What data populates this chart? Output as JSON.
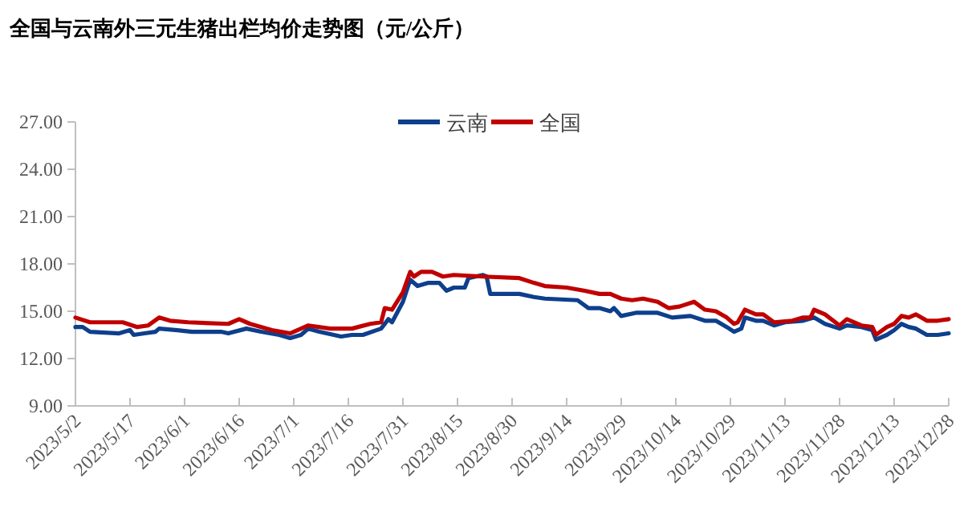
{
  "chart_data": {
    "type": "line",
    "title": "全国与云南外三元生猪出栏均价走势图（元/公斤）",
    "legend": "top",
    "xlim": [
      "2023-05-02",
      "2023-12-28"
    ],
    "xticks": [
      {
        "value": "2023-05-02",
        "label": "2023/5/2"
      },
      {
        "value": "2023-05-17",
        "label": "2023/5/17"
      },
      {
        "value": "2023-06-01",
        "label": "2023/6/1"
      },
      {
        "value": "2023-06-16",
        "label": "2023/6/16"
      },
      {
        "value": "2023-07-01",
        "label": "2023/7/1"
      },
      {
        "value": "2023-07-16",
        "label": "2023/7/16"
      },
      {
        "value": "2023-07-31",
        "label": "2023/7/31"
      },
      {
        "value": "2023-08-15",
        "label": "2023/8/15"
      },
      {
        "value": "2023-08-30",
        "label": "2023/8/30"
      },
      {
        "value": "2023-09-14",
        "label": "2023/9/14"
      },
      {
        "value": "2023-09-29",
        "label": "2023/9/29"
      },
      {
        "value": "2023-10-14",
        "label": "2023/10/14"
      },
      {
        "value": "2023-10-29",
        "label": "2023/10/29"
      },
      {
        "value": "2023-11-13",
        "label": "2023/11/13"
      },
      {
        "value": "2023-11-28",
        "label": "2023/11/28"
      },
      {
        "value": "2023-12-13",
        "label": "2023/12/13"
      },
      {
        "value": "2023-12-28",
        "label": "2023/12/28"
      }
    ],
    "ylim": [
      9,
      27
    ],
    "yticks": [
      {
        "value": 9,
        "label": "9.00"
      },
      {
        "value": 12,
        "label": "12.00"
      },
      {
        "value": 15,
        "label": "15.00"
      },
      {
        "value": 18,
        "label": "18.00"
      },
      {
        "value": 21,
        "label": "21.00"
      },
      {
        "value": 24,
        "label": "24.00"
      },
      {
        "value": 27,
        "label": "27.00"
      }
    ],
    "series": [
      {
        "name": "云南",
        "color": "#0d3f8c",
        "x": [
          "2023-05-02",
          "2023-05-04",
          "2023-05-06",
          "2023-05-14",
          "2023-05-17",
          "2023-05-18",
          "2023-05-21",
          "2023-05-24",
          "2023-05-25",
          "2023-05-30",
          "2023-06-03",
          "2023-06-11",
          "2023-06-13",
          "2023-06-18",
          "2023-06-22",
          "2023-06-27",
          "2023-06-30",
          "2023-07-03",
          "2023-07-05",
          "2023-07-08",
          "2023-07-14",
          "2023-07-17",
          "2023-07-20",
          "2023-07-25",
          "2023-07-27",
          "2023-07-28",
          "2023-07-31",
          "2023-08-02",
          "2023-08-04",
          "2023-08-07",
          "2023-08-10",
          "2023-08-12",
          "2023-08-14",
          "2023-08-17",
          "2023-08-18",
          "2023-08-20",
          "2023-08-22",
          "2023-08-23",
          "2023-08-24",
          "2023-09-01",
          "2023-09-05",
          "2023-09-08",
          "2023-09-17",
          "2023-09-20",
          "2023-09-23",
          "2023-09-26",
          "2023-09-27",
          "2023-09-29",
          "2023-10-03",
          "2023-10-09",
          "2023-10-13",
          "2023-10-18",
          "2023-10-22",
          "2023-10-25",
          "2023-10-28",
          "2023-10-30",
          "2023-11-01",
          "2023-11-02",
          "2023-11-05",
          "2023-11-07",
          "2023-11-10",
          "2023-11-13",
          "2023-11-18",
          "2023-11-21",
          "2023-11-24",
          "2023-11-28",
          "2023-11-30",
          "2023-12-04",
          "2023-12-07",
          "2023-12-08",
          "2023-12-11",
          "2023-12-13",
          "2023-12-15",
          "2023-12-17",
          "2023-12-19",
          "2023-12-22",
          "2023-12-25",
          "2023-12-28"
        ],
        "values": [
          14.0,
          14.0,
          13.7,
          13.6,
          13.8,
          13.5,
          13.6,
          13.7,
          13.9,
          13.8,
          13.7,
          13.7,
          13.6,
          13.9,
          13.7,
          13.5,
          13.3,
          13.5,
          13.9,
          13.7,
          13.4,
          13.5,
          13.5,
          13.9,
          14.5,
          14.3,
          15.6,
          17.0,
          16.6,
          16.8,
          16.8,
          16.3,
          16.5,
          16.5,
          17.1,
          17.2,
          17.3,
          17.2,
          16.1,
          16.1,
          15.9,
          15.8,
          15.7,
          15.2,
          15.2,
          15.0,
          15.2,
          14.7,
          14.9,
          14.9,
          14.6,
          14.7,
          14.4,
          14.4,
          14.0,
          13.7,
          13.9,
          14.6,
          14.4,
          14.4,
          14.1,
          14.3,
          14.4,
          14.6,
          14.2,
          13.9,
          14.1,
          14.0,
          13.8,
          13.2,
          13.5,
          13.8,
          14.2,
          14.0,
          13.9,
          13.5,
          13.5,
          13.6
        ]
      },
      {
        "name": "全国",
        "color": "#c00000",
        "x": [
          "2023-05-02",
          "2023-05-06",
          "2023-05-15",
          "2023-05-19",
          "2023-05-22",
          "2023-05-25",
          "2023-05-28",
          "2023-06-02",
          "2023-06-13",
          "2023-06-16",
          "2023-06-19",
          "2023-06-25",
          "2023-06-30",
          "2023-07-05",
          "2023-07-11",
          "2023-07-17",
          "2023-07-22",
          "2023-07-25",
          "2023-07-26",
          "2023-07-28",
          "2023-07-31",
          "2023-08-02",
          "2023-08-03",
          "2023-08-05",
          "2023-08-08",
          "2023-08-11",
          "2023-08-14",
          "2023-08-22",
          "2023-09-01",
          "2023-09-05",
          "2023-09-08",
          "2023-09-14",
          "2023-09-19",
          "2023-09-23",
          "2023-09-26",
          "2023-09-29",
          "2023-10-02",
          "2023-10-05",
          "2023-10-09",
          "2023-10-12",
          "2023-10-15",
          "2023-10-19",
          "2023-10-22",
          "2023-10-25",
          "2023-10-28",
          "2023-10-30",
          "2023-10-31",
          "2023-11-02",
          "2023-11-05",
          "2023-11-07",
          "2023-11-10",
          "2023-11-15",
          "2023-11-18",
          "2023-11-20",
          "2023-11-21",
          "2023-11-24",
          "2023-11-28",
          "2023-11-30",
          "2023-12-04",
          "2023-12-07",
          "2023-12-08",
          "2023-12-11",
          "2023-12-13",
          "2023-12-15",
          "2023-12-17",
          "2023-12-19",
          "2023-12-22",
          "2023-12-25",
          "2023-12-28"
        ],
        "values": [
          14.6,
          14.3,
          14.3,
          14.0,
          14.1,
          14.6,
          14.4,
          14.3,
          14.2,
          14.5,
          14.2,
          13.8,
          13.6,
          14.1,
          13.9,
          13.9,
          14.2,
          14.3,
          15.2,
          15.1,
          16.2,
          17.5,
          17.2,
          17.5,
          17.5,
          17.2,
          17.3,
          17.2,
          17.1,
          16.8,
          16.6,
          16.5,
          16.3,
          16.1,
          16.1,
          15.8,
          15.7,
          15.8,
          15.6,
          15.2,
          15.3,
          15.6,
          15.1,
          15.0,
          14.6,
          14.2,
          14.3,
          15.1,
          14.8,
          14.8,
          14.3,
          14.4,
          14.6,
          14.6,
          15.1,
          14.8,
          14.1,
          14.5,
          14.1,
          14.0,
          13.5,
          14.0,
          14.2,
          14.7,
          14.6,
          14.8,
          14.4,
          14.4,
          14.5
        ]
      }
    ]
  }
}
